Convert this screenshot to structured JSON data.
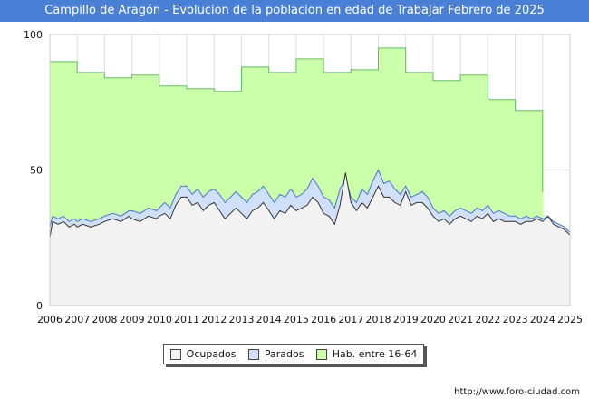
{
  "header": {
    "title": "Campillo de Aragón - Evolucion de la poblacion en edad de Trabajar Febrero de 2025"
  },
  "footer": {
    "source": "http://www.foro-ciudad.com"
  },
  "legend": [
    {
      "label": "Ocupados",
      "color": "#f2f2f2"
    },
    {
      "label": "Parados",
      "color": "#cfe0f8"
    },
    {
      "label": "Hab. entre 16-64",
      "color": "#ccffaa"
    }
  ],
  "chart_data": {
    "type": "area",
    "title": "Campillo de Aragón - Evolucion de la poblacion en edad de Trabajar Febrero de 2025",
    "xlabel": "",
    "ylabel": "",
    "xlim": [
      2006,
      2025
    ],
    "ylim": [
      0,
      100
    ],
    "x_ticks": [
      "2006",
      "2007",
      "2008",
      "2009",
      "2010",
      "2011",
      "2012",
      "2013",
      "2014",
      "2015",
      "2016",
      "2017",
      "2018",
      "2019",
      "2020",
      "2021",
      "2022",
      "2023",
      "2024",
      "2025"
    ],
    "y_ticks": [
      0,
      50,
      100
    ],
    "grid": true,
    "legend_position": "bottom",
    "series": [
      {
        "name": "Hab. entre 16-64",
        "color": "#ccffaa",
        "line_color": "#66bb66",
        "step": true,
        "data": [
          [
            2006,
            90
          ],
          [
            2007,
            86
          ],
          [
            2008,
            84
          ],
          [
            2009,
            85
          ],
          [
            2010,
            81
          ],
          [
            2011,
            80
          ],
          [
            2012,
            79
          ],
          [
            2013,
            88
          ],
          [
            2014,
            86
          ],
          [
            2015,
            91
          ],
          [
            2016,
            86
          ],
          [
            2017,
            87
          ],
          [
            2018,
            95
          ],
          [
            2019,
            86
          ],
          [
            2020,
            83
          ],
          [
            2021,
            85
          ],
          [
            2022,
            76
          ],
          [
            2023,
            72
          ],
          [
            2024,
            42
          ]
        ]
      },
      {
        "name": "Parados",
        "color": "#cfe0f8",
        "line_color": "#4477cc",
        "data": [
          [
            2006.0,
            29
          ],
          [
            2006.1,
            33
          ],
          [
            2006.3,
            32
          ],
          [
            2006.5,
            33
          ],
          [
            2006.7,
            31
          ],
          [
            2006.9,
            32
          ],
          [
            2007.0,
            31
          ],
          [
            2007.2,
            32
          ],
          [
            2007.5,
            31
          ],
          [
            2007.8,
            32
          ],
          [
            2008.0,
            33
          ],
          [
            2008.3,
            34
          ],
          [
            2008.6,
            33
          ],
          [
            2008.9,
            35
          ],
          [
            2009.0,
            35
          ],
          [
            2009.3,
            34
          ],
          [
            2009.6,
            36
          ],
          [
            2009.9,
            35
          ],
          [
            2010.0,
            36
          ],
          [
            2010.2,
            38
          ],
          [
            2010.4,
            36
          ],
          [
            2010.6,
            41
          ],
          [
            2010.8,
            44
          ],
          [
            2011.0,
            44
          ],
          [
            2011.2,
            41
          ],
          [
            2011.4,
            43
          ],
          [
            2011.6,
            40
          ],
          [
            2011.8,
            42
          ],
          [
            2012.0,
            43
          ],
          [
            2012.2,
            41
          ],
          [
            2012.4,
            38
          ],
          [
            2012.6,
            40
          ],
          [
            2012.8,
            42
          ],
          [
            2013.0,
            40
          ],
          [
            2013.2,
            38
          ],
          [
            2013.4,
            41
          ],
          [
            2013.6,
            42
          ],
          [
            2013.8,
            44
          ],
          [
            2014.0,
            41
          ],
          [
            2014.2,
            38
          ],
          [
            2014.4,
            41
          ],
          [
            2014.6,
            40
          ],
          [
            2014.8,
            43
          ],
          [
            2015.0,
            40
          ],
          [
            2015.2,
            41
          ],
          [
            2015.4,
            43
          ],
          [
            2015.6,
            47
          ],
          [
            2015.8,
            44
          ],
          [
            2016.0,
            40
          ],
          [
            2016.2,
            39
          ],
          [
            2016.4,
            36
          ],
          [
            2016.6,
            43
          ],
          [
            2016.8,
            47
          ],
          [
            2017.0,
            40
          ],
          [
            2017.2,
            38
          ],
          [
            2017.4,
            43
          ],
          [
            2017.6,
            41
          ],
          [
            2017.8,
            46
          ],
          [
            2018.0,
            50
          ],
          [
            2018.2,
            45
          ],
          [
            2018.4,
            46
          ],
          [
            2018.6,
            43
          ],
          [
            2018.8,
            41
          ],
          [
            2019.0,
            44
          ],
          [
            2019.2,
            40
          ],
          [
            2019.4,
            41
          ],
          [
            2019.6,
            42
          ],
          [
            2019.8,
            40
          ],
          [
            2020.0,
            36
          ],
          [
            2020.2,
            34
          ],
          [
            2020.4,
            35
          ],
          [
            2020.6,
            33
          ],
          [
            2020.8,
            35
          ],
          [
            2021.0,
            36
          ],
          [
            2021.2,
            35
          ],
          [
            2021.4,
            34
          ],
          [
            2021.6,
            36
          ],
          [
            2021.8,
            35
          ],
          [
            2022.0,
            37
          ],
          [
            2022.2,
            34
          ],
          [
            2022.4,
            35
          ],
          [
            2022.6,
            34
          ],
          [
            2022.8,
            33
          ],
          [
            2023.0,
            33
          ],
          [
            2023.2,
            32
          ],
          [
            2023.4,
            33
          ],
          [
            2023.6,
            32
          ],
          [
            2023.8,
            33
          ],
          [
            2024.0,
            32
          ],
          [
            2024.2,
            33
          ],
          [
            2024.4,
            31
          ],
          [
            2024.6,
            30
          ],
          [
            2024.8,
            29
          ],
          [
            2025.0,
            27
          ]
        ]
      },
      {
        "name": "Ocupados",
        "color": "#f2f2f2",
        "line_color": "#333333",
        "data": [
          [
            2006.0,
            25
          ],
          [
            2006.1,
            31
          ],
          [
            2006.3,
            30
          ],
          [
            2006.5,
            31
          ],
          [
            2006.7,
            29
          ],
          [
            2006.9,
            30
          ],
          [
            2007.0,
            29
          ],
          [
            2007.2,
            30
          ],
          [
            2007.5,
            29
          ],
          [
            2007.8,
            30
          ],
          [
            2008.0,
            31
          ],
          [
            2008.3,
            32
          ],
          [
            2008.6,
            31
          ],
          [
            2008.9,
            33
          ],
          [
            2009.0,
            32
          ],
          [
            2009.3,
            31
          ],
          [
            2009.6,
            33
          ],
          [
            2009.9,
            32
          ],
          [
            2010.0,
            33
          ],
          [
            2010.2,
            34
          ],
          [
            2010.4,
            32
          ],
          [
            2010.6,
            37
          ],
          [
            2010.8,
            40
          ],
          [
            2011.0,
            40
          ],
          [
            2011.2,
            37
          ],
          [
            2011.4,
            38
          ],
          [
            2011.6,
            35
          ],
          [
            2011.8,
            37
          ],
          [
            2012.0,
            38
          ],
          [
            2012.2,
            35
          ],
          [
            2012.4,
            32
          ],
          [
            2012.6,
            34
          ],
          [
            2012.8,
            36
          ],
          [
            2013.0,
            34
          ],
          [
            2013.2,
            32
          ],
          [
            2013.4,
            35
          ],
          [
            2013.6,
            36
          ],
          [
            2013.8,
            38
          ],
          [
            2014.0,
            35
          ],
          [
            2014.2,
            32
          ],
          [
            2014.4,
            35
          ],
          [
            2014.6,
            34
          ],
          [
            2014.8,
            37
          ],
          [
            2015.0,
            35
          ],
          [
            2015.2,
            36
          ],
          [
            2015.4,
            37
          ],
          [
            2015.6,
            40
          ],
          [
            2015.8,
            38
          ],
          [
            2016.0,
            34
          ],
          [
            2016.2,
            33
          ],
          [
            2016.4,
            30
          ],
          [
            2016.6,
            37
          ],
          [
            2016.8,
            49
          ],
          [
            2017.0,
            38
          ],
          [
            2017.2,
            35
          ],
          [
            2017.4,
            38
          ],
          [
            2017.6,
            36
          ],
          [
            2017.8,
            40
          ],
          [
            2018.0,
            44
          ],
          [
            2018.2,
            40
          ],
          [
            2018.4,
            40
          ],
          [
            2018.6,
            38
          ],
          [
            2018.8,
            37
          ],
          [
            2019.0,
            42
          ],
          [
            2019.2,
            37
          ],
          [
            2019.4,
            38
          ],
          [
            2019.6,
            38
          ],
          [
            2019.8,
            36
          ],
          [
            2020.0,
            33
          ],
          [
            2020.2,
            31
          ],
          [
            2020.4,
            32
          ],
          [
            2020.6,
            30
          ],
          [
            2020.8,
            32
          ],
          [
            2021.0,
            33
          ],
          [
            2021.2,
            32
          ],
          [
            2021.4,
            31
          ],
          [
            2021.6,
            33
          ],
          [
            2021.8,
            32
          ],
          [
            2022.0,
            34
          ],
          [
            2022.2,
            31
          ],
          [
            2022.4,
            32
          ],
          [
            2022.6,
            31
          ],
          [
            2022.8,
            31
          ],
          [
            2023.0,
            31
          ],
          [
            2023.2,
            30
          ],
          [
            2023.4,
            31
          ],
          [
            2023.6,
            31
          ],
          [
            2023.8,
            32
          ],
          [
            2024.0,
            31
          ],
          [
            2024.2,
            33
          ],
          [
            2024.4,
            30
          ],
          [
            2024.6,
            29
          ],
          [
            2024.8,
            28
          ],
          [
            2025.0,
            26
          ]
        ]
      }
    ]
  }
}
